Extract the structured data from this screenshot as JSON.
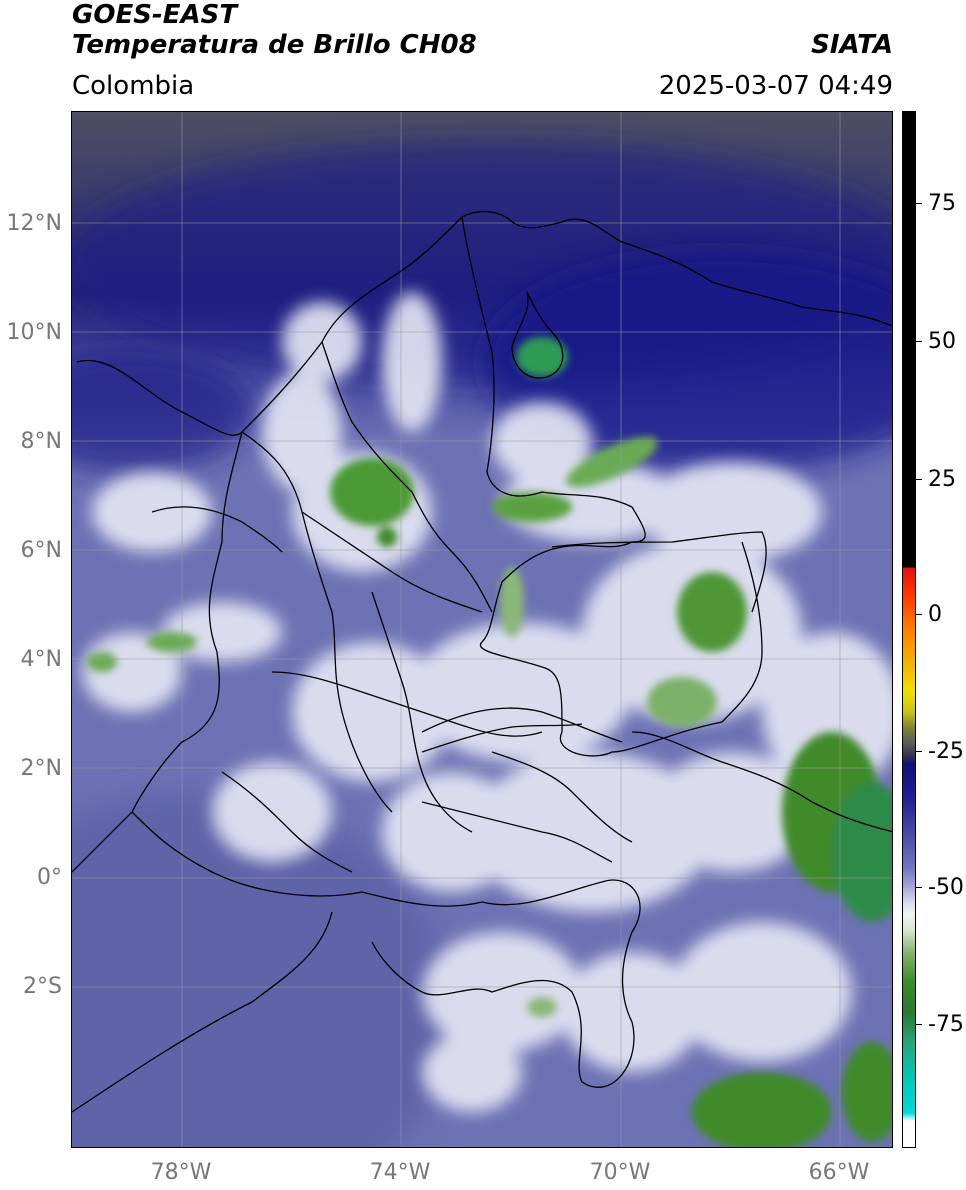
{
  "header": {
    "satellite": "GOES-EAST",
    "product": "Temperatura de Brillo CH08",
    "region": "Colombia",
    "organization": "SIATA",
    "datetime": "2025-03-07 04:49"
  },
  "map": {
    "latitude_labels": [
      "12°N",
      "10°N",
      "8°N",
      "6°N",
      "4°N",
      "2°N",
      "0°",
      "2°S"
    ],
    "longitude_labels": [
      "78°W",
      "74°W",
      "70°W",
      "66°W"
    ]
  },
  "colorbar": {
    "tick_labels": [
      "75",
      "50",
      "25",
      "0",
      "-25",
      "-50",
      "-75"
    ],
    "colors": {
      "cold": "#ffffff",
      "cyan": "#00d8d8",
      "teal": "#2aa57a",
      "green": "#3f8a2a",
      "white_band": "#f2f2f2",
      "blue": "#7075c0",
      "navy": "#10107a",
      "grey": "#5a5a5a",
      "yellow": "#f0e000",
      "orange": "#ff8000",
      "red": "#e01010",
      "black": "#000000"
    }
  },
  "scene_colors": {
    "background": "#6d72b4",
    "warm_north": "#4e4f63",
    "navy": "#17188c",
    "cloud": "#e8eaf6",
    "convective": "#4b9a35",
    "border": "#000000",
    "grid": "#9a9a9a"
  }
}
